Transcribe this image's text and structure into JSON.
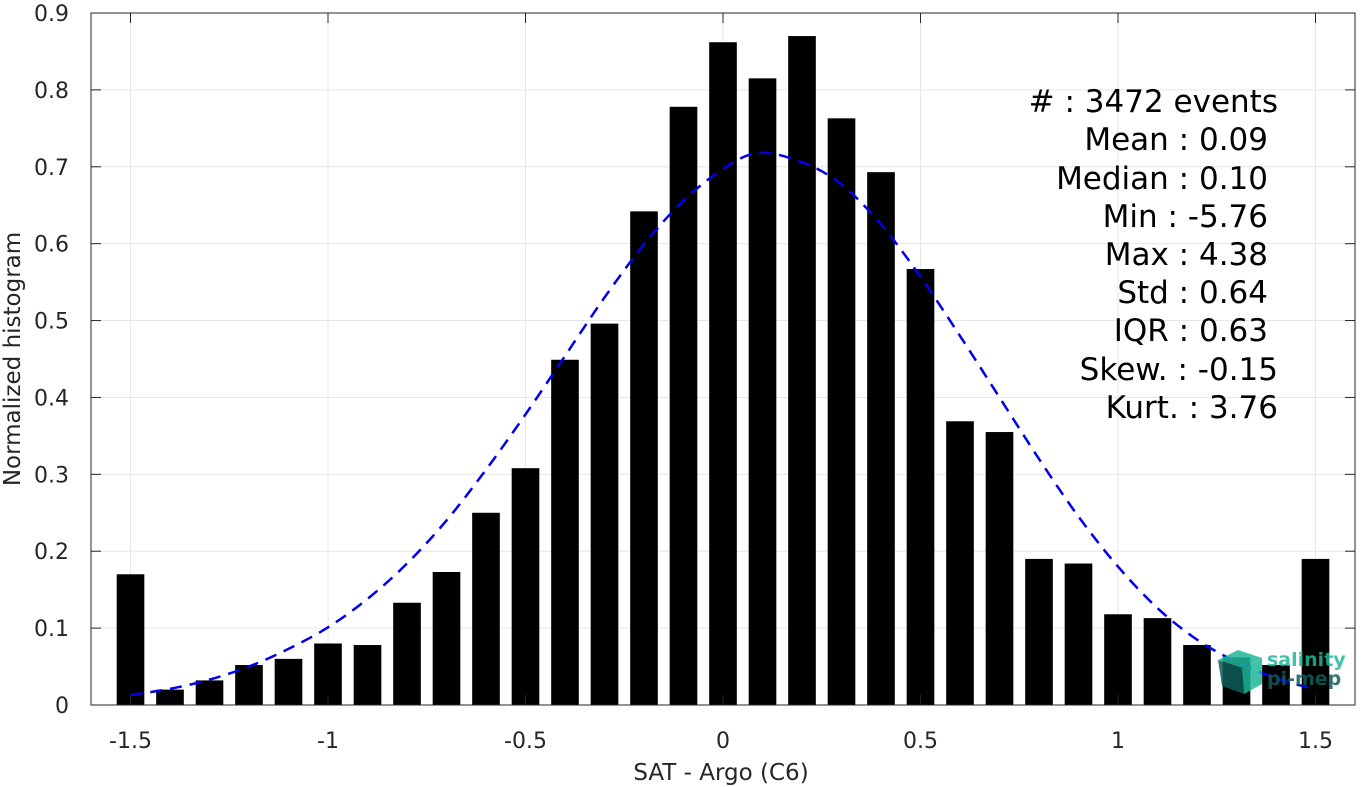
{
  "chart_data": {
    "type": "bar",
    "xlabel": "SAT - Argo (C6)",
    "ylabel": "Normalized histogram",
    "xlim": [
      -1.6,
      1.6
    ],
    "ylim": [
      0,
      0.9
    ],
    "grid": true,
    "xticks": [
      {
        "value": -1.5,
        "label": "-1.5"
      },
      {
        "value": -1,
        "label": "-1"
      },
      {
        "value": -0.5,
        "label": "-0.5"
      },
      {
        "value": 0,
        "label": "0"
      },
      {
        "value": 0.5,
        "label": "0.5"
      },
      {
        "value": 1,
        "label": "1"
      },
      {
        "value": 1.5,
        "label": "1.5"
      }
    ],
    "yticks": [
      {
        "value": 0,
        "label": "0"
      },
      {
        "value": 0.1,
        "label": "0.1"
      },
      {
        "value": 0.2,
        "label": "0.2"
      },
      {
        "value": 0.3,
        "label": "0.3"
      },
      {
        "value": 0.4,
        "label": "0.4"
      },
      {
        "value": 0.5,
        "label": "0.5"
      },
      {
        "value": 0.6,
        "label": "0.6"
      },
      {
        "value": 0.7,
        "label": "0.7"
      },
      {
        "value": 0.8,
        "label": "0.8"
      },
      {
        "value": 0.9,
        "label": "0.9"
      }
    ],
    "bar_color": "#000000",
    "bars": {
      "x": [
        -1.5,
        -1.4,
        -1.3,
        -1.2,
        -1.1,
        -1.0,
        -0.9,
        -0.8,
        -0.7,
        -0.6,
        -0.5,
        -0.4,
        -0.3,
        -0.2,
        -0.1,
        0.0,
        0.1,
        0.2,
        0.3,
        0.4,
        0.5,
        0.6,
        0.7,
        0.8,
        0.9,
        1.0,
        1.1,
        1.2,
        1.3,
        1.4,
        1.5
      ],
      "values": [
        0.17,
        0.02,
        0.032,
        0.052,
        0.06,
        0.08,
        0.078,
        0.133,
        0.173,
        0.25,
        0.308,
        0.449,
        0.496,
        0.642,
        0.778,
        0.862,
        0.815,
        0.87,
        0.763,
        0.693,
        0.567,
        0.369,
        0.355,
        0.19,
        0.184,
        0.118,
        0.113,
        0.078,
        0.062,
        0.052,
        0.19
      ],
      "bin_width": 0.07
    },
    "fit_curve": {
      "name": "Gaussian fit",
      "style": "dashed",
      "color": "#0000ee",
      "x": [
        -1.5,
        -1.4,
        -1.3,
        -1.2,
        -1.1,
        -1.0,
        -0.9,
        -0.8,
        -0.7,
        -0.6,
        -0.5,
        -0.4,
        -0.3,
        -0.2,
        -0.1,
        0.0,
        0.09,
        0.2,
        0.3,
        0.4,
        0.5,
        0.6,
        0.7,
        0.8,
        0.9,
        1.0,
        1.1,
        1.2,
        1.3,
        1.4,
        1.5
      ],
      "y": [
        0.013,
        0.021,
        0.033,
        0.05,
        0.073,
        0.101,
        0.138,
        0.184,
        0.24,
        0.306,
        0.378,
        0.454,
        0.53,
        0.599,
        0.656,
        0.697,
        0.718,
        0.706,
        0.677,
        0.625,
        0.557,
        0.48,
        0.4,
        0.32,
        0.245,
        0.18,
        0.126,
        0.085,
        0.056,
        0.035,
        0.02
      ]
    }
  },
  "stats": [
    "#  : 3472 events",
    "Mean : 0.09",
    "Median : 0.10",
    "Min : -5.76",
    "Max : 4.38",
    "Std : 0.64",
    "IQR : 0.63",
    "Skew. : -0.15",
    "Kurt. : 3.76"
  ],
  "logo": {
    "line1": "salinity",
    "line2": "pi-mep",
    "color_primary": "#1fb89a",
    "color_secondary": "#0f5e5a"
  }
}
